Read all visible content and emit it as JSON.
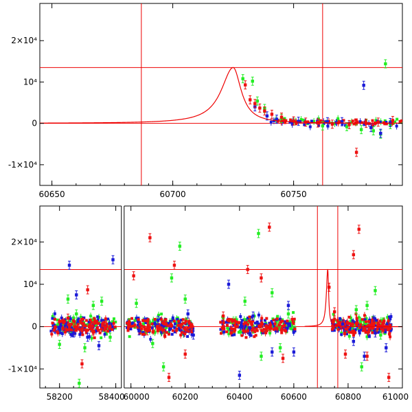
{
  "colors": {
    "model": "#ee0000",
    "g": "#22ee22",
    "b": "#1a1ad8",
    "r": "#ee1111"
  },
  "chart_data": [
    {
      "type": "scatter",
      "panel": "top",
      "xlim": [
        60645,
        60795
      ],
      "ylim": [
        -15000,
        29000
      ],
      "x_ticks": [
        60650,
        60700,
        60750
      ],
      "y_ticks": [
        {
          "value": 20000,
          "label": "2×10⁴"
        },
        {
          "value": 10000,
          "label": "10⁴"
        },
        {
          "value": 0,
          "label": "0"
        },
        {
          "value": -10000,
          "label": "-1×10⁴"
        }
      ],
      "model_curve": {
        "t0": 60725,
        "peak": 13500,
        "rise": 6,
        "decay": 4
      },
      "hlines": [
        13500,
        0
      ],
      "vlines": [
        60687,
        60762
      ],
      "series": [
        {
          "name": "g",
          "points": [
            [
              60729,
              10800
            ],
            [
              60733,
              10200
            ],
            [
              60735,
              5400
            ],
            [
              60738,
              3600
            ],
            [
              60745,
              1200
            ],
            [
              60762,
              -600
            ],
            [
              60772,
              -800
            ],
            [
              60778,
              -1500
            ],
            [
              60783,
              -1800
            ],
            [
              60786,
              -2600
            ],
            [
              60788,
              14400
            ],
            [
              60790,
              -300
            ]
          ]
        },
        {
          "name": "b",
          "points": [
            [
              60734,
              4000
            ],
            [
              60739,
              1800
            ],
            [
              60743,
              1000
            ],
            [
              60752,
              500
            ],
            [
              60764,
              400
            ],
            [
              60770,
              400
            ],
            [
              60779,
              9200
            ],
            [
              60782,
              -1000
            ],
            [
              60786,
              -2400
            ],
            [
              60790,
              200
            ]
          ]
        },
        {
          "name": "r",
          "points": [
            [
              60730,
              9300
            ],
            [
              60732,
              5700
            ],
            [
              60734,
              4800
            ],
            [
              60736,
              3700
            ],
            [
              60738,
              3000
            ],
            [
              60741,
              2200
            ],
            [
              60745,
              1500
            ],
            [
              60750,
              600
            ],
            [
              60755,
              300
            ],
            [
              60760,
              100
            ],
            [
              60766,
              -200
            ],
            [
              60773,
              -300
            ],
            [
              60776,
              -7000
            ],
            [
              60780,
              0
            ],
            [
              60785,
              300
            ],
            [
              60791,
              700
            ]
          ]
        }
      ]
    },
    {
      "type": "scatter",
      "panel": "bottom",
      "xlim": [
        58130,
        61000
      ],
      "axis_break": {
        "from": 58420,
        "to": 59975,
        "screen_split": 58425
      },
      "ylim": [
        -14500,
        28500
      ],
      "x_ticks": [
        58200,
        58400,
        60000,
        60200,
        60400,
        60600,
        60800,
        61000
      ],
      "y_ticks": [
        {
          "value": 20000,
          "label": "2×10⁴"
        },
        {
          "value": 10000,
          "label": "10⁴"
        },
        {
          "value": 0,
          "label": "0"
        },
        {
          "value": -10000,
          "label": "-1×10⁴"
        }
      ],
      "model_curve": {
        "t0": 60725,
        "peak": 13500,
        "rise": 6,
        "decay": 4
      },
      "hlines": [
        13500,
        0
      ],
      "vlines": [
        60687,
        60762
      ],
      "seasons": [
        [
          58170,
          58400
        ],
        [
          59985,
          60230
        ],
        [
          60330,
          60605
        ],
        [
          60740,
          60960
        ]
      ],
      "series": [
        {
          "name": "g",
          "points": [
            [
              58200,
              -4200
            ],
            [
              58230,
              6500
            ],
            [
              58260,
              3000
            ],
            [
              58290,
              -5000
            ],
            [
              58320,
              5000
            ],
            [
              58350,
              6000
            ],
            [
              58380,
              -2500
            ],
            [
              58270,
              -13400
            ],
            [
              60020,
              5500
            ],
            [
              60080,
              -4000
            ],
            [
              60150,
              11500
            ],
            [
              60180,
              19000
            ],
            [
              60120,
              -9500
            ],
            [
              60200,
              6500
            ],
            [
              60420,
              6000
            ],
            [
              60480,
              -7000
            ],
            [
              60520,
              8000
            ],
            [
              60550,
              -5000
            ],
            [
              60580,
              3000
            ],
            [
              60470,
              22000
            ],
            [
              60830,
              4000
            ],
            [
              60870,
              5000
            ],
            [
              60900,
              8500
            ],
            [
              60850,
              -9500
            ],
            [
              60920,
              -2000
            ]
          ]
        },
        {
          "name": "b",
          "points": [
            [
              58235,
              14500
            ],
            [
              58260,
              7500
            ],
            [
              58300,
              -2500
            ],
            [
              58340,
              -4500
            ],
            [
              58390,
              15800
            ],
            [
              58250,
              -1500
            ],
            [
              60030,
              -1000
            ],
            [
              60100,
              1500
            ],
            [
              60210,
              3000
            ],
            [
              60230,
              -2000
            ],
            [
              60360,
              10000
            ],
            [
              60400,
              -11500
            ],
            [
              60450,
              2500
            ],
            [
              60520,
              -6000
            ],
            [
              60580,
              5000
            ],
            [
              60600,
              -6000
            ],
            [
              60780,
              600
            ],
            [
              60820,
              -3500
            ],
            [
              60860,
              -7000
            ],
            [
              60900,
              -1500
            ],
            [
              60940,
              -5000
            ]
          ]
        },
        {
          "name": "r",
          "points": [
            [
              58300,
              8700
            ],
            [
              58280,
              -8800
            ],
            [
              58230,
              2000
            ],
            [
              58320,
              -1000
            ],
            [
              60010,
              12000
            ],
            [
              60070,
              21000
            ],
            [
              60140,
              -12000
            ],
            [
              60160,
              14500
            ],
            [
              60200,
              -6500
            ],
            [
              60060,
              -1000
            ],
            [
              60340,
              2500
            ],
            [
              60480,
              11500
            ],
            [
              60510,
              23500
            ],
            [
              60430,
              13500
            ],
            [
              60560,
              -7500
            ],
            [
              60730,
              9300
            ],
            [
              60750,
              3500
            ],
            [
              60790,
              -6500
            ],
            [
              60820,
              17000
            ],
            [
              60840,
              23000
            ],
            [
              60870,
              -7000
            ],
            [
              60910,
              800
            ],
            [
              60950,
              -12000
            ]
          ]
        }
      ]
    }
  ]
}
